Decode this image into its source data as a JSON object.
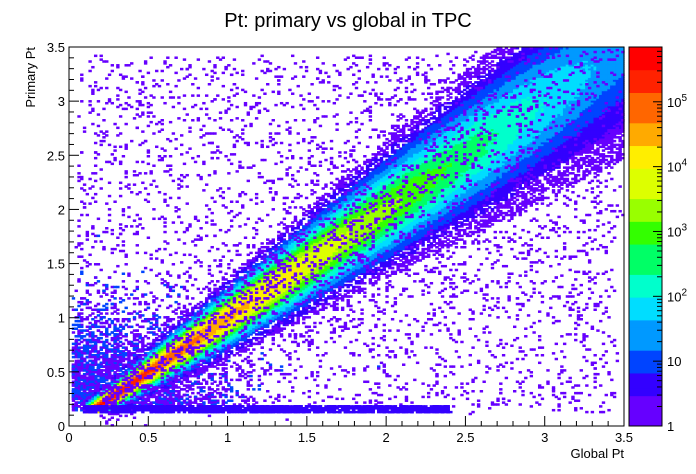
{
  "chart_data": {
    "type": "heatmap",
    "title": "Pt: primary vs global in TPC",
    "xlabel": "Global Pt",
    "ylabel": "Primary Pt",
    "xlim": [
      0,
      3.5
    ],
    "ylim": [
      0,
      3.5
    ],
    "x_ticks": [
      "0",
      "0.5",
      "1",
      "1.5",
      "2",
      "2.5",
      "3",
      "3.5"
    ],
    "y_ticks": [
      "0",
      "0.5",
      "1",
      "1.5",
      "2",
      "2.5",
      "3",
      "3.5"
    ],
    "z_scale": "log",
    "z_range": [
      1,
      700000
    ],
    "colorbar_ticks": [
      {
        "value": 1,
        "base": "1",
        "exp": ""
      },
      {
        "value": 10,
        "base": "10",
        "exp": ""
      },
      {
        "value": 100,
        "base": "10",
        "exp": "2"
      },
      {
        "value": 1000,
        "base": "10",
        "exp": "3"
      },
      {
        "value": 10000,
        "base": "10",
        "exp": "4"
      },
      {
        "value": 100000,
        "base": "10",
        "exp": "5"
      }
    ],
    "colormap": [
      "#6600ff",
      "#3300ff",
      "#0044ff",
      "#0099ff",
      "#00ddff",
      "#00ffcc",
      "#00ff66",
      "#33ff00",
      "#99ff00",
      "#ddff00",
      "#ffee00",
      "#ffaa00",
      "#ff6600",
      "#ff2200",
      "#ff0000"
    ],
    "description_band": "Dense diagonal ridge along Primary Pt ≈ Global Pt, peak density near low Pt, widening spread toward high Pt"
  }
}
